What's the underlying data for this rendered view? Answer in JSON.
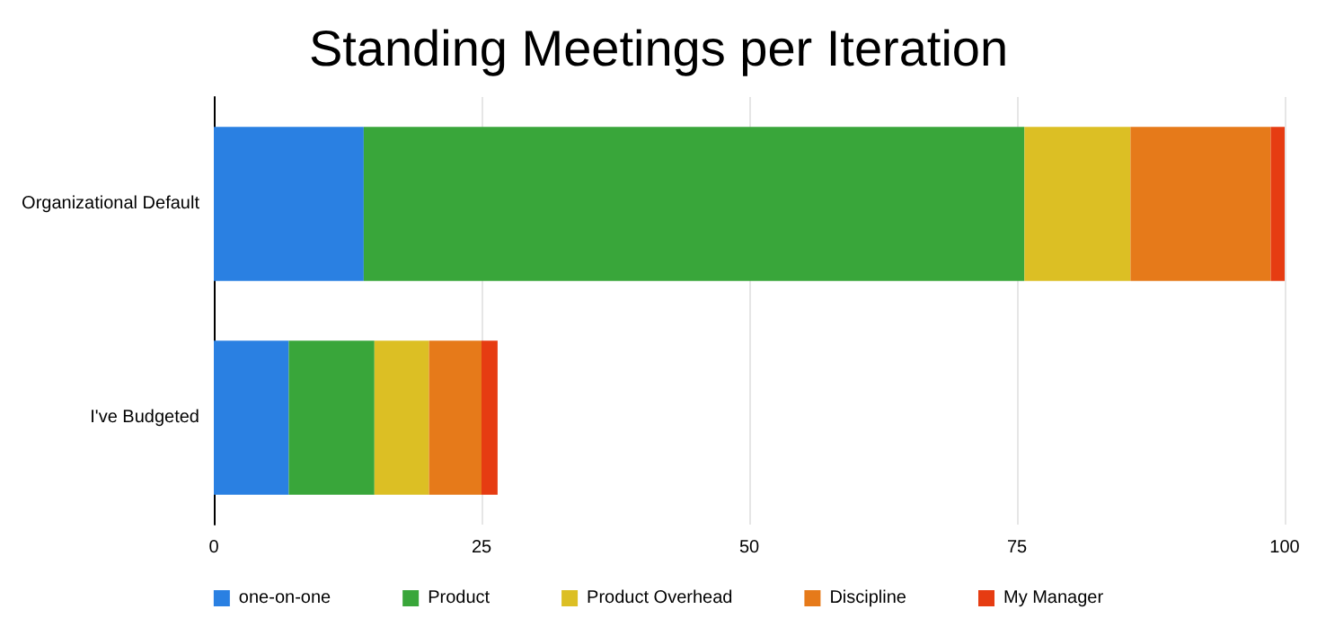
{
  "chart_data": {
    "type": "bar",
    "orientation": "horizontal",
    "stacked": true,
    "title": "Standing Meetings per Iteration",
    "categories": [
      "Organizational Default",
      "I've Budgeted"
    ],
    "series": [
      {
        "name": "one-on-one",
        "color": "#2a80e2",
        "values": [
          14,
          7
        ]
      },
      {
        "name": "Product",
        "color": "#39a63a",
        "values": [
          61.7,
          8
        ]
      },
      {
        "name": "Product Overhead",
        "color": "#dcbf24",
        "values": [
          9.9,
          5.1
        ]
      },
      {
        "name": "Discipline",
        "color": "#e67a1a",
        "values": [
          13.1,
          4.9
        ]
      },
      {
        "name": "My Manager",
        "color": "#e63c12",
        "values": [
          1.3,
          1.5
        ]
      }
    ],
    "xlim": [
      0,
      100
    ],
    "xticks": [
      0,
      25,
      50,
      75,
      100
    ],
    "grid": "x",
    "legend": "bottom"
  }
}
